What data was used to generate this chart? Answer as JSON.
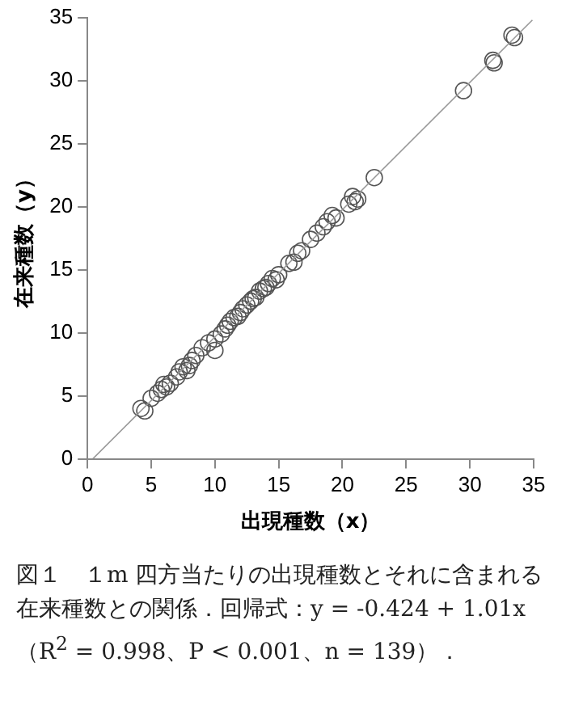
{
  "chart_data": {
    "type": "scatter",
    "xlabel": "出現種数（x）",
    "ylabel": "在来種数（y）",
    "xlim": [
      0,
      35
    ],
    "ylim": [
      0,
      35
    ],
    "xticks": [
      0,
      5,
      10,
      15,
      20,
      25,
      30,
      35
    ],
    "yticks": [
      0,
      5,
      10,
      15,
      20,
      25,
      30,
      35
    ],
    "grid": false,
    "legend": false,
    "marker": "circle",
    "series": [
      {
        "color": "#555555",
        "x": [
          33.5,
          33.3,
          31.9,
          31.8,
          29.5,
          22.5,
          21.2,
          21,
          20.8,
          20.5,
          19.5,
          19.2,
          18.8,
          18.5,
          18,
          17.5,
          16.8,
          16.5,
          16.2,
          15.8,
          15,
          14.8,
          14.5,
          14.2,
          14,
          13.8,
          13.5,
          13.2,
          13,
          12.8,
          12.5,
          12.2,
          12,
          11.8,
          11.5,
          11.2,
          11,
          10.8,
          10.5,
          10,
          10,
          9.5,
          9,
          8.5,
          8.2,
          8,
          7.8,
          7.5,
          7.2,
          7,
          6.5,
          6.2,
          6,
          5.8,
          5.5,
          5,
          4.5,
          4.2
        ],
        "values": [
          33.4,
          33.6,
          31.4,
          31.6,
          29.2,
          22.3,
          20.6,
          20.4,
          20.8,
          20.2,
          19.1,
          19.3,
          18.8,
          18.4,
          17.9,
          17.4,
          16.5,
          16.3,
          15.6,
          15.5,
          14.6,
          14.2,
          14.3,
          13.9,
          13.6,
          13.5,
          13.3,
          12.8,
          12.7,
          12.5,
          12.2,
          11.9,
          11.6,
          11.3,
          11.2,
          10.9,
          10.6,
          10.3,
          9.9,
          9.5,
          8.6,
          9.2,
          8.8,
          8.2,
          7.8,
          7.4,
          7,
          7.3,
          6.9,
          6.5,
          6,
          5.7,
          5.9,
          5.5,
          5.2,
          4.8,
          3.8,
          4
        ]
      },
      {
        "color": "#999999",
        "type": "line",
        "marker": "none",
        "x": [
          0.42,
          34.9
        ],
        "values": [
          0,
          34.8
        ]
      }
    ],
    "annotations": [
      "図１　１m 四方当たりの出現種数とそれに含まれる在来種数との関係．回帰式：y = -0.424 + 1.01x（R$^{2}$ = 0.998、P < 0.001、n = 139）．"
    ]
  }
}
